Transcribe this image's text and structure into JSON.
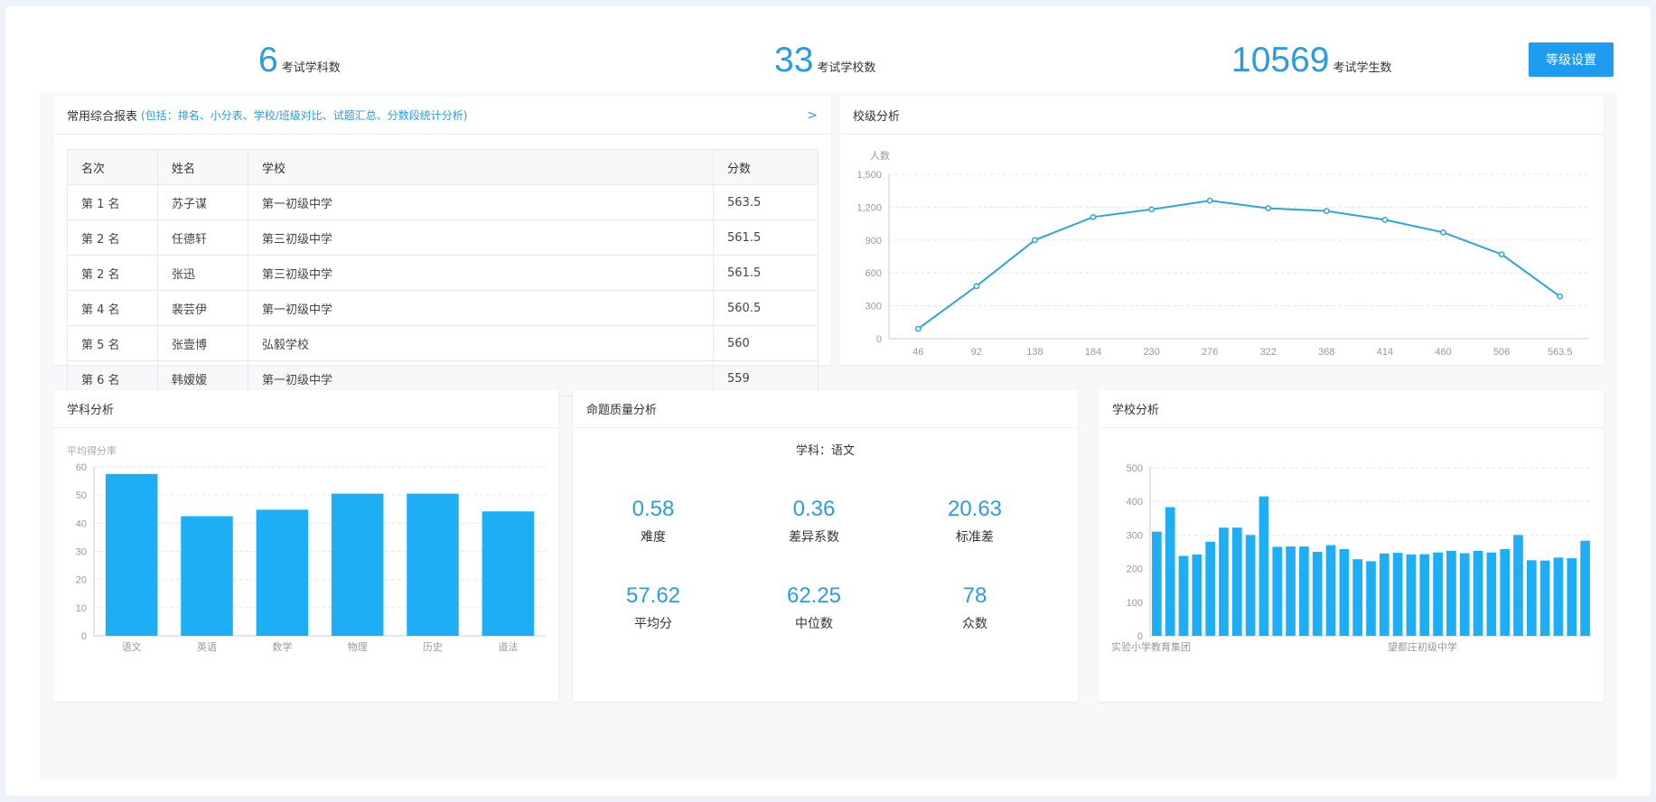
{
  "stats": [
    {
      "value": "6",
      "label": "考试学科数"
    },
    {
      "value": "33",
      "label": "考试学校数"
    },
    {
      "value": "10569",
      "label": "考试学生数"
    }
  ],
  "grade_button": "等级设置",
  "report_card": {
    "title": "常用综合报表",
    "subtitle": "(包括：排名、小分表、学校/班级对比、试题汇总、分数段统计分析)",
    "more": ">",
    "columns": [
      "名次",
      "姓名",
      "学校",
      "分数"
    ],
    "rows": [
      [
        "第 1 名",
        "苏子谋",
        "第一初级中学",
        "563.5"
      ],
      [
        "第 2 名",
        "任德轩",
        "第三初级中学",
        "561.5"
      ],
      [
        "第 2 名",
        "张迅",
        "第三初级中学",
        "561.5"
      ],
      [
        "第 4 名",
        "裴芸伊",
        "第一初级中学",
        "560.5"
      ],
      [
        "第 5 名",
        "张壹博",
        "弘毅学校",
        "560"
      ],
      [
        "第 6 名",
        "韩嫒嫒",
        "第一初级中学",
        "559"
      ]
    ]
  },
  "school_level": {
    "title": "校级分析",
    "chart_data": {
      "type": "line",
      "ylabel": "人数",
      "x": [
        "46",
        "92",
        "138",
        "184",
        "230",
        "276",
        "322",
        "368",
        "414",
        "460",
        "506",
        "563.5"
      ],
      "values": [
        90,
        480,
        900,
        1110,
        1180,
        1260,
        1190,
        1165,
        1085,
        970,
        770,
        385
      ],
      "ylim": [
        0,
        1500
      ],
      "yticks": [
        "0",
        "300",
        "600",
        "900",
        "1,200",
        "1,500"
      ],
      "color": "#2ea4dc",
      "grid": true
    }
  },
  "subject": {
    "title": "学科分析",
    "chart_data": {
      "type": "bar",
      "ylabel": "平均得分率",
      "categories": [
        "语文",
        "英语",
        "数学",
        "物理",
        "历史",
        "道法"
      ],
      "values": [
        57.5,
        42.5,
        44.8,
        50.5,
        50.5,
        44.2
      ],
      "ylim": [
        0,
        60
      ],
      "yticks": [
        "0",
        "10",
        "20",
        "30",
        "40",
        "50",
        "60"
      ],
      "color": "#1daef5",
      "grid": true
    }
  },
  "quality": {
    "title": "命题质量分析",
    "subject_line": "学科：语文",
    "metrics": [
      {
        "value": "0.58",
        "label": "难度"
      },
      {
        "value": "0.36",
        "label": "差异系数"
      },
      {
        "value": "20.63",
        "label": "标准差"
      },
      {
        "value": "57.62",
        "label": "平均分"
      },
      {
        "value": "62.25",
        "label": "中位数"
      },
      {
        "value": "78",
        "label": "众数"
      }
    ]
  },
  "school": {
    "title": "学校分析",
    "chart_data": {
      "type": "bar",
      "x_labels_shown": [
        "实验小学教育集团",
        "望都庄初级中学"
      ],
      "values": [
        310,
        383,
        238,
        242,
        280,
        322,
        322,
        300,
        415,
        265,
        266,
        266,
        250,
        270,
        258,
        228,
        222,
        245,
        247,
        242,
        243,
        248,
        253,
        246,
        253,
        248,
        258,
        300,
        225,
        224,
        233,
        231,
        283
      ],
      "ylim": [
        0,
        500
      ],
      "yticks": [
        "0",
        "100",
        "200",
        "300",
        "400",
        "500"
      ],
      "color": "#1daef5",
      "grid": true
    }
  }
}
